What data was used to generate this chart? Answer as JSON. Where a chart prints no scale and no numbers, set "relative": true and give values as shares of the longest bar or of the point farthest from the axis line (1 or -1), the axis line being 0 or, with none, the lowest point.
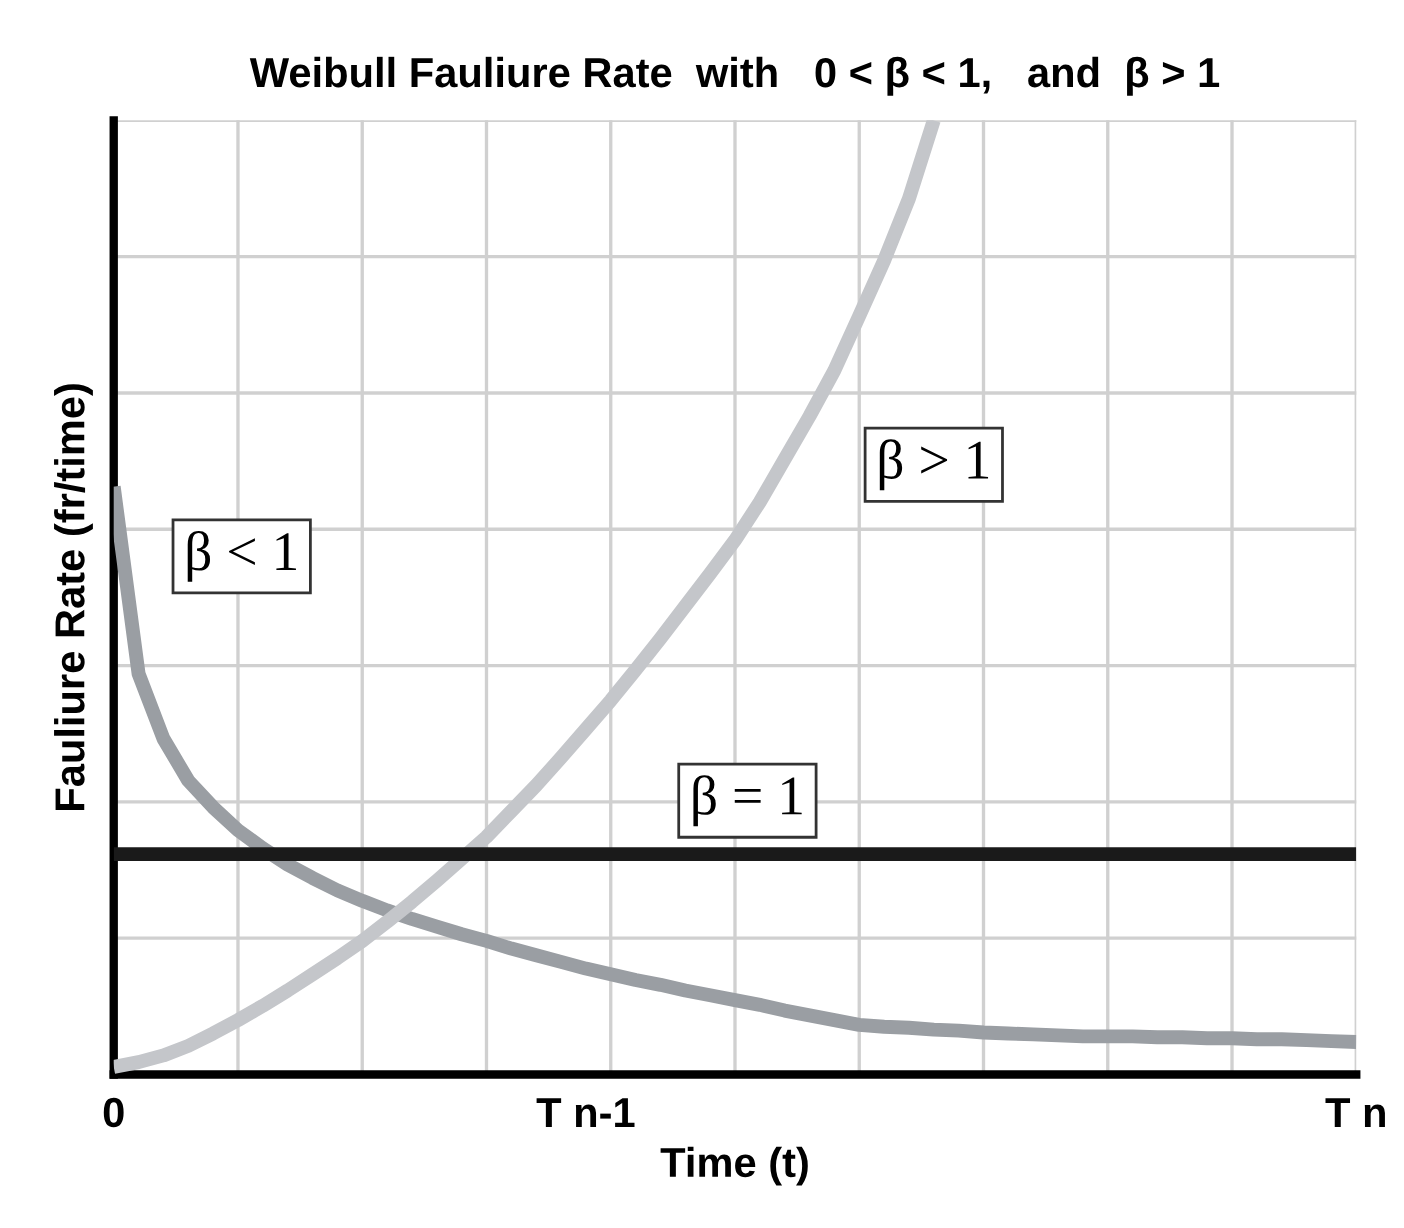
{
  "chart_data": {
    "type": "line",
    "title": "Weibull Fauliure Rate  with   0 < β < 1,   and  β > 1",
    "xlabel": "Time (t)",
    "ylabel": "Fauliure Rate (fr/time)",
    "relative": true,
    "grid": true,
    "marker": "none",
    "line_style": "solid",
    "categories": [
      "0",
      null,
      null,
      null,
      null,
      null,
      null,
      null,
      null,
      null,
      null,
      null,
      null,
      null,
      null,
      null,
      null,
      null,
      null,
      "T n-1",
      null,
      null,
      null,
      null,
      null,
      null,
      null,
      null,
      null,
      null,
      null,
      null,
      null,
      null,
      null,
      null,
      null,
      null,
      null,
      null,
      null,
      null,
      null,
      null,
      null,
      null,
      null,
      null,
      null,
      null,
      "T n"
    ],
    "series": [
      {
        "color": "#9a9ea3",
        "values": [
          0.616,
          0.42,
          0.352,
          0.308,
          0.28,
          0.256,
          0.237,
          0.22,
          0.206,
          0.193,
          0.182,
          0.172,
          0.163,
          0.155,
          0.147,
          0.14,
          0.132,
          0.125,
          0.118,
          0.111,
          0.105,
          0.099,
          0.094,
          0.088,
          0.083,
          0.078,
          0.073,
          0.067,
          0.062,
          0.057,
          0.052,
          0.05,
          0.049,
          0.047,
          0.046,
          0.044,
          0.043,
          0.042,
          0.041,
          0.04,
          0.04,
          0.04,
          0.039,
          0.039,
          0.038,
          0.038,
          0.037,
          0.037,
          0.036,
          0.035,
          0.034
        ]
      },
      {
        "color": "#c4c6ca",
        "values": [
          0.008,
          0.013,
          0.02,
          0.03,
          0.043,
          0.057,
          0.072,
          0.088,
          0.105,
          0.122,
          0.14,
          0.16,
          0.181,
          0.203,
          0.226,
          0.249,
          0.276,
          0.303,
          0.332,
          0.362,
          0.392,
          0.424,
          0.457,
          0.491,
          0.525,
          0.56,
          0.6,
          0.645,
          0.69,
          0.738,
          0.795,
          0.853,
          0.918,
          1.0,
          null,
          null,
          null,
          null,
          null,
          null,
          null,
          null,
          null,
          null,
          null,
          null,
          null,
          null,
          null,
          null,
          null
        ]
      },
      {
        "color": "#1a1a1a",
        "values": [
          0.231,
          0.231,
          0.231,
          0.231,
          0.231,
          0.231,
          0.231,
          0.231,
          0.231,
          0.231,
          0.231,
          0.231,
          0.231,
          0.231,
          0.231,
          0.231,
          0.231,
          0.231,
          0.231,
          0.231,
          0.231,
          0.231,
          0.231,
          0.231,
          0.231,
          0.231,
          0.231,
          0.231,
          0.231,
          0.231,
          0.231,
          0.231,
          0.231,
          0.231,
          0.231,
          0.231,
          0.231,
          0.231,
          0.231,
          0.231,
          0.231,
          0.231,
          0.231,
          0.231,
          0.231,
          0.231,
          0.231,
          0.231,
          0.231,
          0.231,
          0.231
        ]
      }
    ],
    "annotations": [
      "β < 1",
      "β > 1",
      "β = 1"
    ]
  }
}
